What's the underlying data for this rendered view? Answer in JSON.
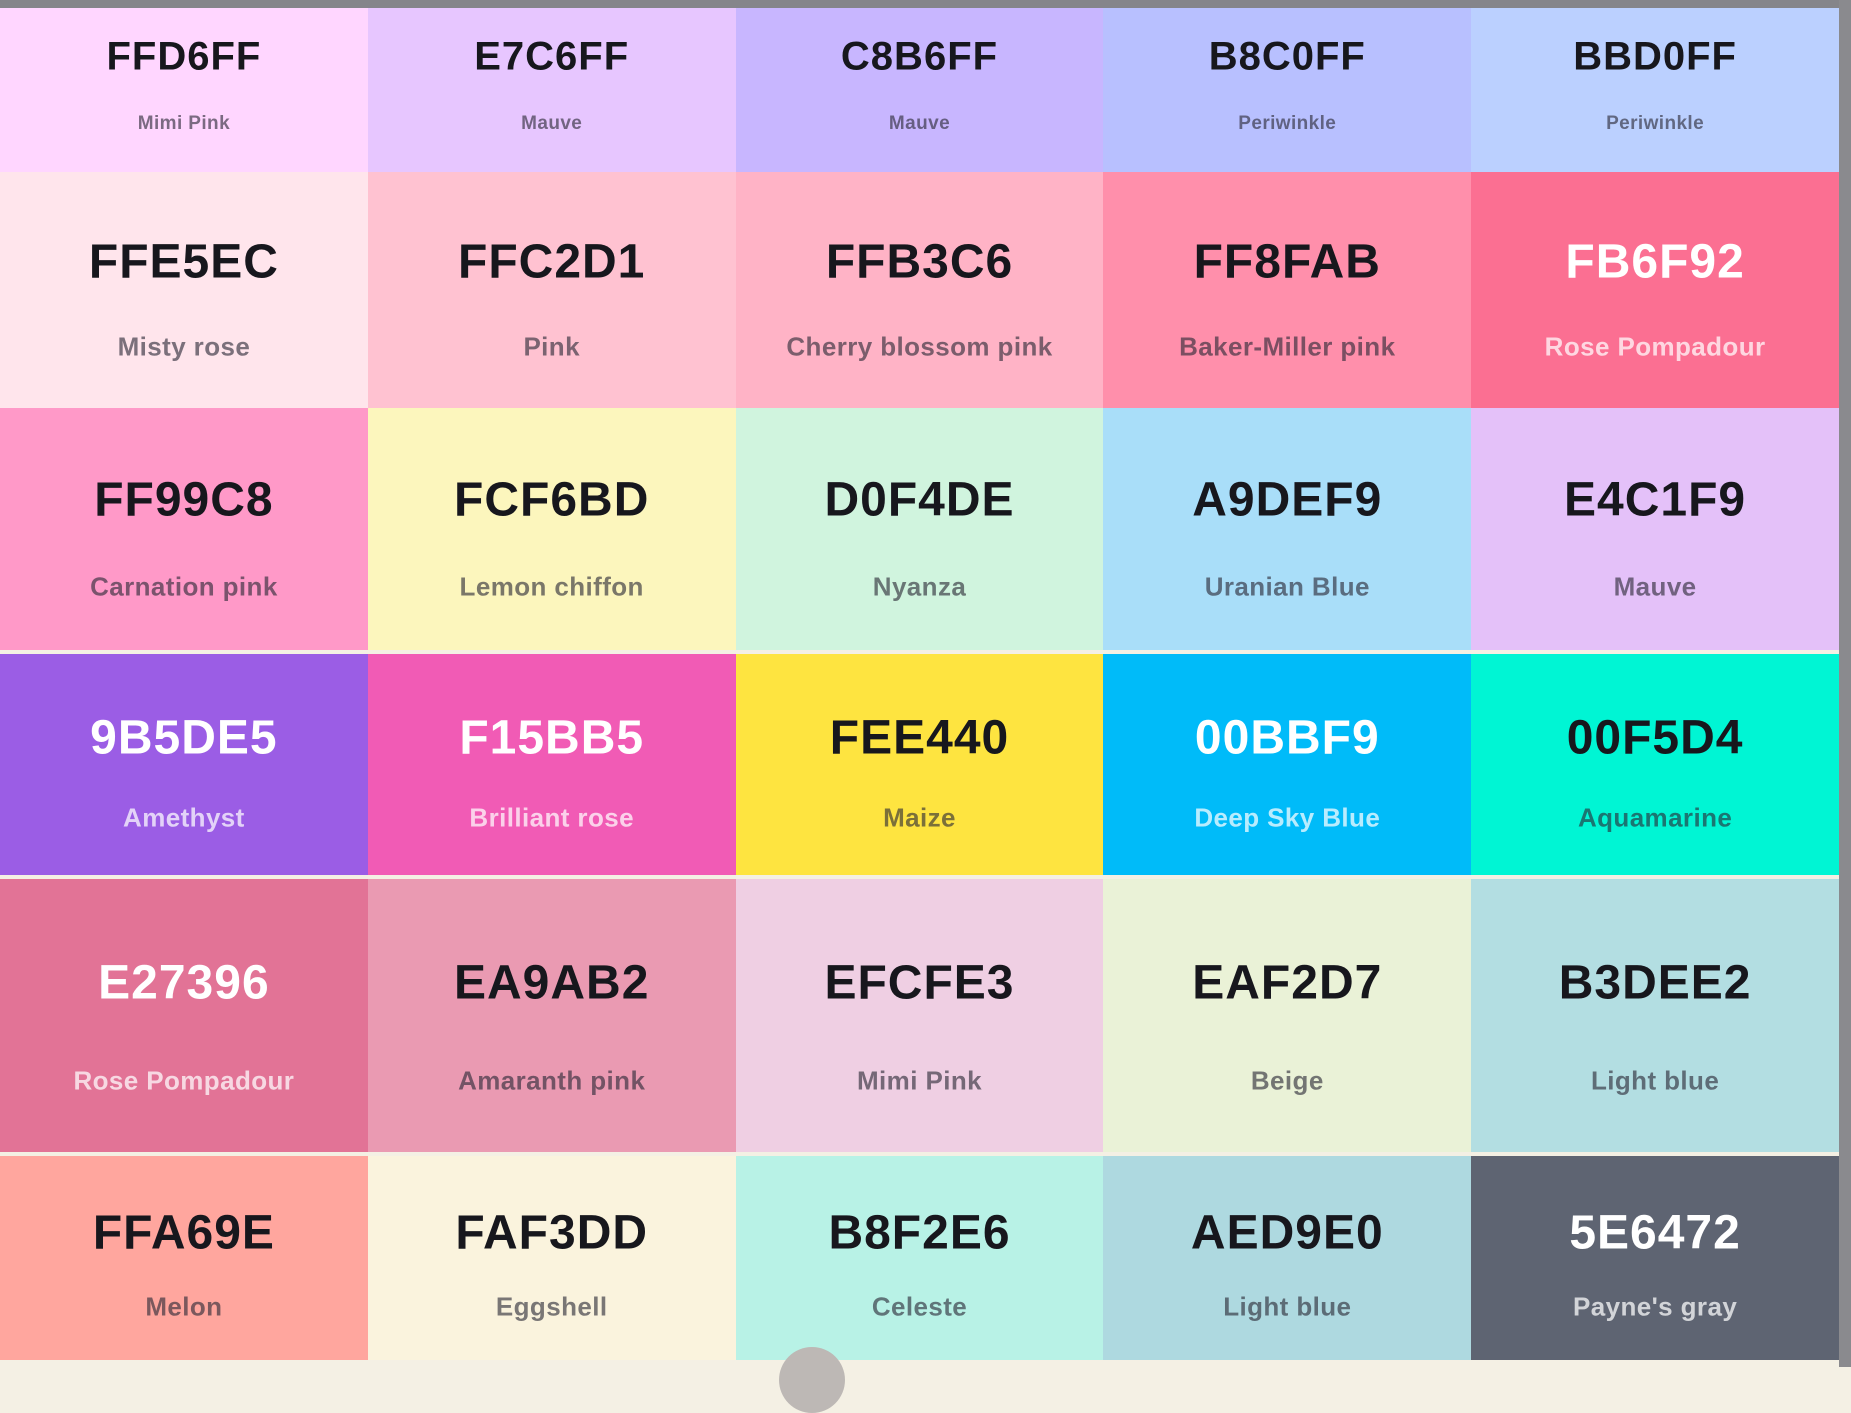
{
  "page": {
    "top_bar_color": "#85858A",
    "right_bar_color": "#8A8A8E",
    "bottom_strip_color": "#F4F0E4",
    "indicator_color": "#BDB8B5"
  },
  "grid": {
    "rows": [
      {
        "cells": [
          {
            "hex": "FFD6FF",
            "name": "Mimi Pink",
            "bg": "#FFD6FF",
            "text_style": "dark"
          },
          {
            "hex": "E7C6FF",
            "name": "Mauve",
            "bg": "#E7C6FF",
            "text_style": "dark"
          },
          {
            "hex": "C8B6FF",
            "name": "Mauve",
            "bg": "#C8B6FF",
            "text_style": "dark"
          },
          {
            "hex": "B8C0FF",
            "name": "Periwinkle",
            "bg": "#B8C0FF",
            "text_style": "dark"
          },
          {
            "hex": "BBD0FF",
            "name": "Periwinkle",
            "bg": "#BBD0FF",
            "text_style": "dark"
          }
        ]
      },
      {
        "cells": [
          {
            "hex": "FFE5EC",
            "name": "Misty rose",
            "bg": "#FFE5EC",
            "text_style": "dark"
          },
          {
            "hex": "FFC2D1",
            "name": "Pink",
            "bg": "#FFC2D1",
            "text_style": "dark"
          },
          {
            "hex": "FFB3C6",
            "name": "Cherry blossom pink",
            "bg": "#FFB3C6",
            "text_style": "dark"
          },
          {
            "hex": "FF8FAB",
            "name": "Baker-Miller pink",
            "bg": "#FF8FAB",
            "text_style": "dark"
          },
          {
            "hex": "FB6F92",
            "name": "Rose Pompadour",
            "bg": "#FB6F92",
            "text_style": "light"
          }
        ]
      },
      {
        "cells": [
          {
            "hex": "FF99C8",
            "name": "Carnation pink",
            "bg": "#FF99C8",
            "text_style": "dark"
          },
          {
            "hex": "FCF6BD",
            "name": "Lemon chiffon",
            "bg": "#FCF6BD",
            "text_style": "dark"
          },
          {
            "hex": "D0F4DE",
            "name": "Nyanza",
            "bg": "#D0F4DE",
            "text_style": "dark"
          },
          {
            "hex": "A9DEF9",
            "name": "Uranian Blue",
            "bg": "#A9DEF9",
            "text_style": "dark"
          },
          {
            "hex": "E4C1F9",
            "name": "Mauve",
            "bg": "#E4C1F9",
            "text_style": "dark"
          }
        ]
      },
      {
        "cells": [
          {
            "hex": "9B5DE5",
            "name": "Amethyst",
            "bg": "#9B5DE5",
            "text_style": "light"
          },
          {
            "hex": "F15BB5",
            "name": "Brilliant rose",
            "bg": "#F15BB5",
            "text_style": "light"
          },
          {
            "hex": "FEE440",
            "name": "Maize",
            "bg": "#FEE440",
            "text_style": "dark"
          },
          {
            "hex": "00BBF9",
            "name": "Deep Sky Blue",
            "bg": "#00BBF9",
            "text_style": "light"
          },
          {
            "hex": "00F5D4",
            "name": "Aquamarine",
            "bg": "#00F5D4",
            "text_style": "dark"
          }
        ]
      },
      {
        "cells": [
          {
            "hex": "E27396",
            "name": "Rose Pompadour",
            "bg": "#E27396",
            "text_style": "light"
          },
          {
            "hex": "EA9AB2",
            "name": "Amaranth pink",
            "bg": "#EA9AB2",
            "text_style": "dark"
          },
          {
            "hex": "EFCFE3",
            "name": "Mimi Pink",
            "bg": "#EFCFE3",
            "text_style": "dark"
          },
          {
            "hex": "EAF2D7",
            "name": "Beige",
            "bg": "#EAF2D7",
            "text_style": "dark"
          },
          {
            "hex": "B3DEE2",
            "name": "Light blue",
            "bg": "#B3DEE2",
            "text_style": "dark"
          }
        ]
      },
      {
        "cells": [
          {
            "hex": "FFA69E",
            "name": "Melon",
            "bg": "#FFA69E",
            "text_style": "dark"
          },
          {
            "hex": "FAF3DD",
            "name": "Eggshell",
            "bg": "#FAF3DD",
            "text_style": "dark"
          },
          {
            "hex": "B8F2E6",
            "name": "Celeste",
            "bg": "#B8F2E6",
            "text_style": "dark"
          },
          {
            "hex": "AED9E0",
            "name": "Light blue",
            "bg": "#AED9E0",
            "text_style": "dark"
          },
          {
            "hex": "5E6472",
            "name": "Payne's gray",
            "bg": "#5E6472",
            "text_style": "light"
          }
        ]
      }
    ]
  }
}
